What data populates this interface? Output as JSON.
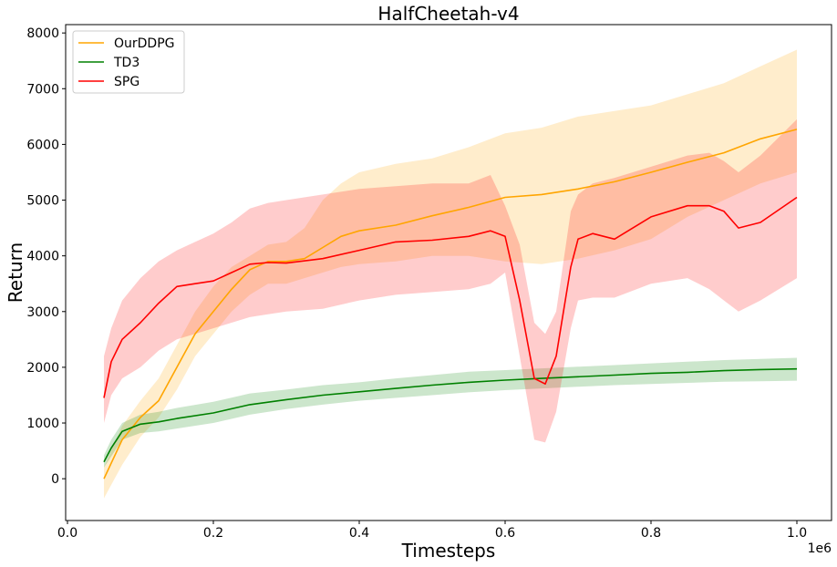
{
  "chart_data": {
    "type": "line",
    "title": "HalfCheetah-v4",
    "xlabel": "Timesteps",
    "ylabel": "Return",
    "x_offset_text": "1e6",
    "xlim": [
      -0.0025,
      1.0475
    ],
    "ylim": [
      -750,
      8150
    ],
    "x_ticks": [
      0.0,
      0.2,
      0.4,
      0.6,
      0.8,
      1.0
    ],
    "x_tick_labels": [
      "0.0",
      "0.2",
      "0.4",
      "0.6",
      "0.8",
      "1.0"
    ],
    "y_ticks": [
      0,
      1000,
      2000,
      3000,
      4000,
      5000,
      6000,
      7000,
      8000
    ],
    "y_tick_labels": [
      "0",
      "1000",
      "2000",
      "3000",
      "4000",
      "5000",
      "6000",
      "7000",
      "8000"
    ],
    "grid": false,
    "legend_position": "top-left",
    "legend": [
      "OurDDPG",
      "TD3",
      "SPG"
    ],
    "series": [
      {
        "name": "OurDDPG",
        "color": "#ffa500",
        "band_color": "#ffa500",
        "x": [
          0.05,
          0.075,
          0.1,
          0.125,
          0.15,
          0.175,
          0.2,
          0.225,
          0.25,
          0.275,
          0.3,
          0.325,
          0.35,
          0.375,
          0.4,
          0.45,
          0.5,
          0.55,
          0.6,
          0.65,
          0.7,
          0.75,
          0.8,
          0.85,
          0.9,
          0.95,
          1.0
        ],
        "y": [
          0,
          700,
          1100,
          1400,
          2000,
          2600,
          3000,
          3400,
          3750,
          3900,
          3900,
          3950,
          4150,
          4350,
          4450,
          4550,
          4720,
          4870,
          5050,
          5100,
          5200,
          5330,
          5500,
          5680,
          5850,
          6100,
          6270
        ],
        "lower": [
          -350,
          250,
          750,
          1100,
          1600,
          2200,
          2600,
          3000,
          3300,
          3500,
          3500,
          3600,
          3700,
          3800,
          3850,
          3900,
          4000,
          4000,
          3900,
          3850,
          3950,
          4100,
          4300,
          4700,
          5000,
          5300,
          5500
        ],
        "upper": [
          200,
          950,
          1400,
          1800,
          2400,
          3000,
          3450,
          3800,
          4000,
          4200,
          4250,
          4500,
          5000,
          5300,
          5500,
          5650,
          5750,
          5950,
          6200,
          6300,
          6500,
          6600,
          6700,
          6900,
          7100,
          7400,
          7700
        ]
      },
      {
        "name": "TD3",
        "color": "#008000",
        "band_color": "#008000",
        "x": [
          0.05,
          0.06,
          0.075,
          0.1,
          0.125,
          0.15,
          0.2,
          0.25,
          0.3,
          0.35,
          0.4,
          0.45,
          0.5,
          0.55,
          0.6,
          0.65,
          0.7,
          0.75,
          0.8,
          0.85,
          0.9,
          0.95,
          1.0
        ],
        "y": [
          300,
          550,
          850,
          980,
          1020,
          1080,
          1180,
          1330,
          1420,
          1500,
          1560,
          1620,
          1680,
          1730,
          1770,
          1800,
          1830,
          1860,
          1890,
          1910,
          1940,
          1960,
          1970
        ],
        "lower": [
          200,
          400,
          700,
          820,
          850,
          900,
          1000,
          1150,
          1250,
          1330,
          1400,
          1450,
          1500,
          1550,
          1590,
          1620,
          1650,
          1680,
          1700,
          1720,
          1740,
          1750,
          1760
        ],
        "upper": [
          420,
          700,
          1000,
          1150,
          1200,
          1270,
          1380,
          1530,
          1600,
          1680,
          1730,
          1800,
          1860,
          1920,
          1950,
          1980,
          2010,
          2040,
          2070,
          2100,
          2130,
          2150,
          2170
        ]
      },
      {
        "name": "SPG",
        "color": "#ff0000",
        "band_color": "#ff0000",
        "x": [
          0.05,
          0.06,
          0.075,
          0.1,
          0.125,
          0.15,
          0.175,
          0.2,
          0.225,
          0.25,
          0.275,
          0.3,
          0.35,
          0.4,
          0.45,
          0.5,
          0.55,
          0.58,
          0.6,
          0.62,
          0.64,
          0.655,
          0.67,
          0.69,
          0.7,
          0.72,
          0.75,
          0.8,
          0.85,
          0.88,
          0.9,
          0.92,
          0.95,
          1.0
        ],
        "y": [
          1450,
          2100,
          2500,
          2800,
          3150,
          3450,
          3500,
          3550,
          3700,
          3850,
          3880,
          3870,
          3950,
          4100,
          4250,
          4280,
          4350,
          4450,
          4350,
          3200,
          1800,
          1700,
          2200,
          3800,
          4300,
          4400,
          4300,
          4700,
          4900,
          4900,
          4800,
          4500,
          4600,
          5050
        ],
        "lower": [
          1000,
          1500,
          1800,
          2000,
          2300,
          2500,
          2600,
          2700,
          2800,
          2900,
          2950,
          3000,
          3050,
          3200,
          3300,
          3350,
          3400,
          3500,
          3700,
          2200,
          700,
          650,
          1200,
          2700,
          3200,
          3250,
          3250,
          3500,
          3600,
          3400,
          3200,
          3000,
          3200,
          3600
        ],
        "upper": [
          2200,
          2700,
          3200,
          3600,
          3900,
          4100,
          4250,
          4400,
          4600,
          4850,
          4950,
          5000,
          5100,
          5200,
          5250,
          5300,
          5300,
          5450,
          4900,
          4200,
          2800,
          2600,
          3000,
          4800,
          5100,
          5300,
          5400,
          5600,
          5800,
          5850,
          5700,
          5500,
          5800,
          6450
        ]
      }
    ]
  }
}
